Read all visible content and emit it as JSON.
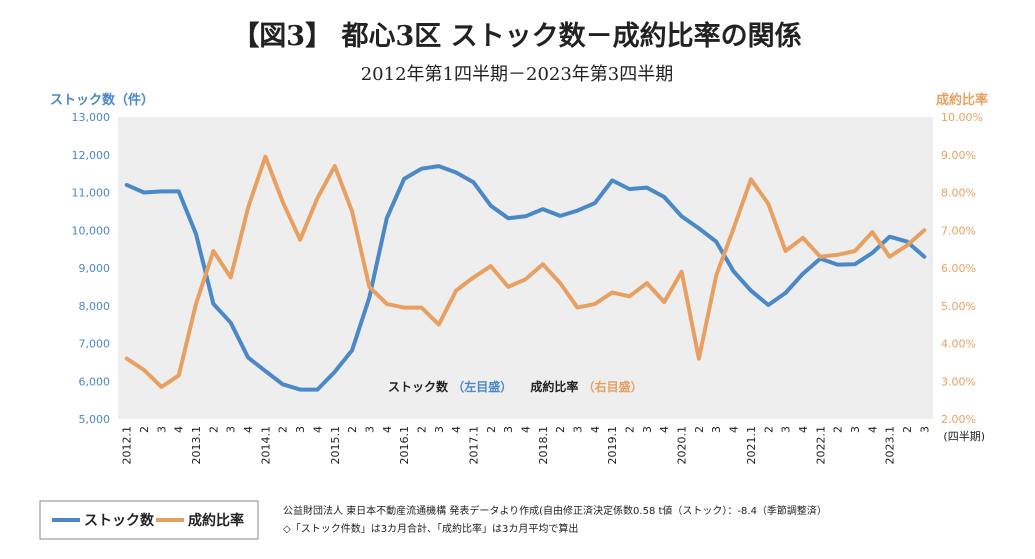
{
  "title": "【図3】 都心3区 ストック数－成約比率の関係",
  "subtitle": "2012年第1四半期－2023年第3四半期",
  "colors": {
    "stock": "#4a88c8",
    "ratio": "#e8a062",
    "plot_bg": "#eeeeee",
    "left_axis": "#4a88c8",
    "right_axis": "#e8a062"
  },
  "chart_data": {
    "type": "line",
    "title": "【図3】 都心3区 ストック数－成約比率の関係",
    "subtitle": "2012年第1四半期－2023年第3四半期",
    "x_unit_label": "(四半期)",
    "y_left": {
      "label": "ストック数（件）",
      "range": [
        5000,
        13000
      ],
      "ticks": [
        "5,000",
        "6,000",
        "7,000",
        "8,000",
        "9,000",
        "10,000",
        "11,000",
        "12,000",
        "13,000"
      ]
    },
    "y_right": {
      "label": "成約比率",
      "range": [
        2.0,
        10.0
      ],
      "ticks": [
        "2.00%",
        "3.00%",
        "4.00%",
        "5.00%",
        "6.00%",
        "7.00%",
        "8.00%",
        "9.00%",
        "10.00%"
      ]
    },
    "x_labels": [
      "2012.1",
      "2",
      "3",
      "4",
      "2013.1",
      "2",
      "3",
      "4",
      "2014.1",
      "2",
      "3",
      "4",
      "2015.1",
      "2",
      "3",
      "4",
      "2016.1",
      "2",
      "3",
      "4",
      "2017.1",
      "2",
      "3",
      "4",
      "2018.1",
      "2",
      "3",
      "4",
      "2019.1",
      "2",
      "3",
      "4",
      "2020.1",
      "2",
      "3",
      "4",
      "2021.1",
      "2",
      "3",
      "4",
      "2022.1",
      "2",
      "3",
      "4",
      "2023.1",
      "2",
      "3"
    ],
    "series": [
      {
        "name": "ストック数",
        "axis": "left",
        "values": [
          11200,
          11000,
          11030,
          11030,
          9900,
          8050,
          7550,
          6630,
          6270,
          5920,
          5780,
          5780,
          6250,
          6820,
          8220,
          10320,
          11360,
          11630,
          11700,
          11530,
          11270,
          10650,
          10320,
          10370,
          10560,
          10380,
          10520,
          10720,
          11320,
          11090,
          11130,
          10880,
          10370,
          10050,
          9700,
          8910,
          8400,
          8020,
          8340,
          8850,
          9250,
          9090,
          9100,
          9400,
          9830,
          9700,
          9300
        ]
      },
      {
        "name": "成約比率",
        "axis": "right",
        "values": [
          3.6,
          3.3,
          2.85,
          3.15,
          5.05,
          6.45,
          5.75,
          7.6,
          8.95,
          7.75,
          6.75,
          7.85,
          8.7,
          7.5,
          5.5,
          5.05,
          4.95,
          4.95,
          4.5,
          5.4,
          5.75,
          6.05,
          5.5,
          5.7,
          6.1,
          5.6,
          4.95,
          5.05,
          5.35,
          5.25,
          5.6,
          5.1,
          5.9,
          3.6,
          5.8,
          7.05,
          8.35,
          7.7,
          6.45,
          6.8,
          6.3,
          6.35,
          6.45,
          6.95,
          6.3,
          6.6,
          7.0
        ]
      }
    ],
    "inline_legend": {
      "stock_name": "ストック数",
      "stock_axis": "（左目盛）",
      "ratio_name": "成約比率",
      "ratio_axis": "（右目盛）"
    },
    "grid": false,
    "legend_position": "bottom-left"
  },
  "legend": [
    {
      "name": "ストック数"
    },
    {
      "name": "成約比率"
    }
  ],
  "footnotes": [
    "公益財団法人 東日本不動産流通機構 発表データより作成(自由修正済決定係数0.58 t値（ストック）：-8.4（季節調整済）",
    "◇「ストック件数」は3カ月合計、「成約比率」は3カ月平均で算出"
  ]
}
